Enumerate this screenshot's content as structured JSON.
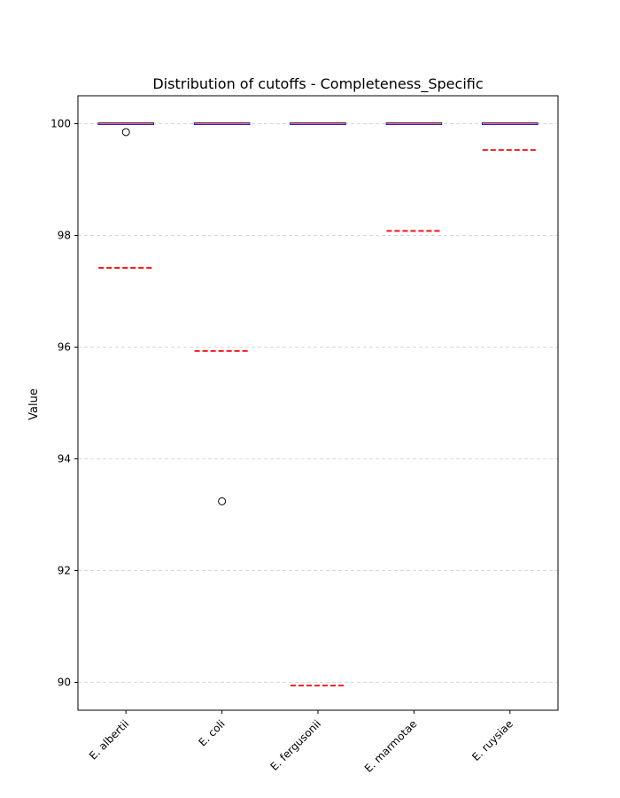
{
  "chart_data": {
    "type": "box",
    "title": "Distribution of cutoffs - Completeness_Specific",
    "xlabel": "",
    "ylabel": "Value",
    "ylim": [
      89.5,
      100.5
    ],
    "yticks": [
      90,
      92,
      94,
      96,
      98,
      100
    ],
    "grid": "y-dashed",
    "categories": [
      "E. albertii",
      "E. coli",
      "E. fergusonii",
      "E. marmotae",
      "E. ruysiae"
    ],
    "boxes": [
      {
        "category": "E. albertii",
        "q1": 100,
        "median": 100,
        "q3": 100,
        "whisker_low": 100,
        "whisker_high": 100,
        "cutoff": 97.42,
        "outliers": [
          99.85
        ]
      },
      {
        "category": "E. coli",
        "q1": 100,
        "median": 100,
        "q3": 100,
        "whisker_low": 100,
        "whisker_high": 100,
        "cutoff": 95.93,
        "outliers": [
          93.24
        ]
      },
      {
        "category": "E. fergusonii",
        "q1": 100,
        "median": 100,
        "q3": 100,
        "whisker_low": 100,
        "whisker_high": 100,
        "cutoff": 89.94,
        "outliers": []
      },
      {
        "category": "E. marmotae",
        "q1": 100,
        "median": 100,
        "q3": 100,
        "whisker_low": 100,
        "whisker_high": 100,
        "cutoff": 98.08,
        "outliers": []
      },
      {
        "category": "E. ruysiae",
        "q1": 100,
        "median": 100,
        "q3": 100,
        "whisker_low": 100,
        "whisker_high": 100,
        "cutoff": 99.53,
        "outliers": []
      }
    ],
    "colors": {
      "box": "#0000ff",
      "median": "#ff7f0e",
      "cutoff": "#ff0000",
      "grid": "#cccccc",
      "axis": "#000000"
    }
  }
}
